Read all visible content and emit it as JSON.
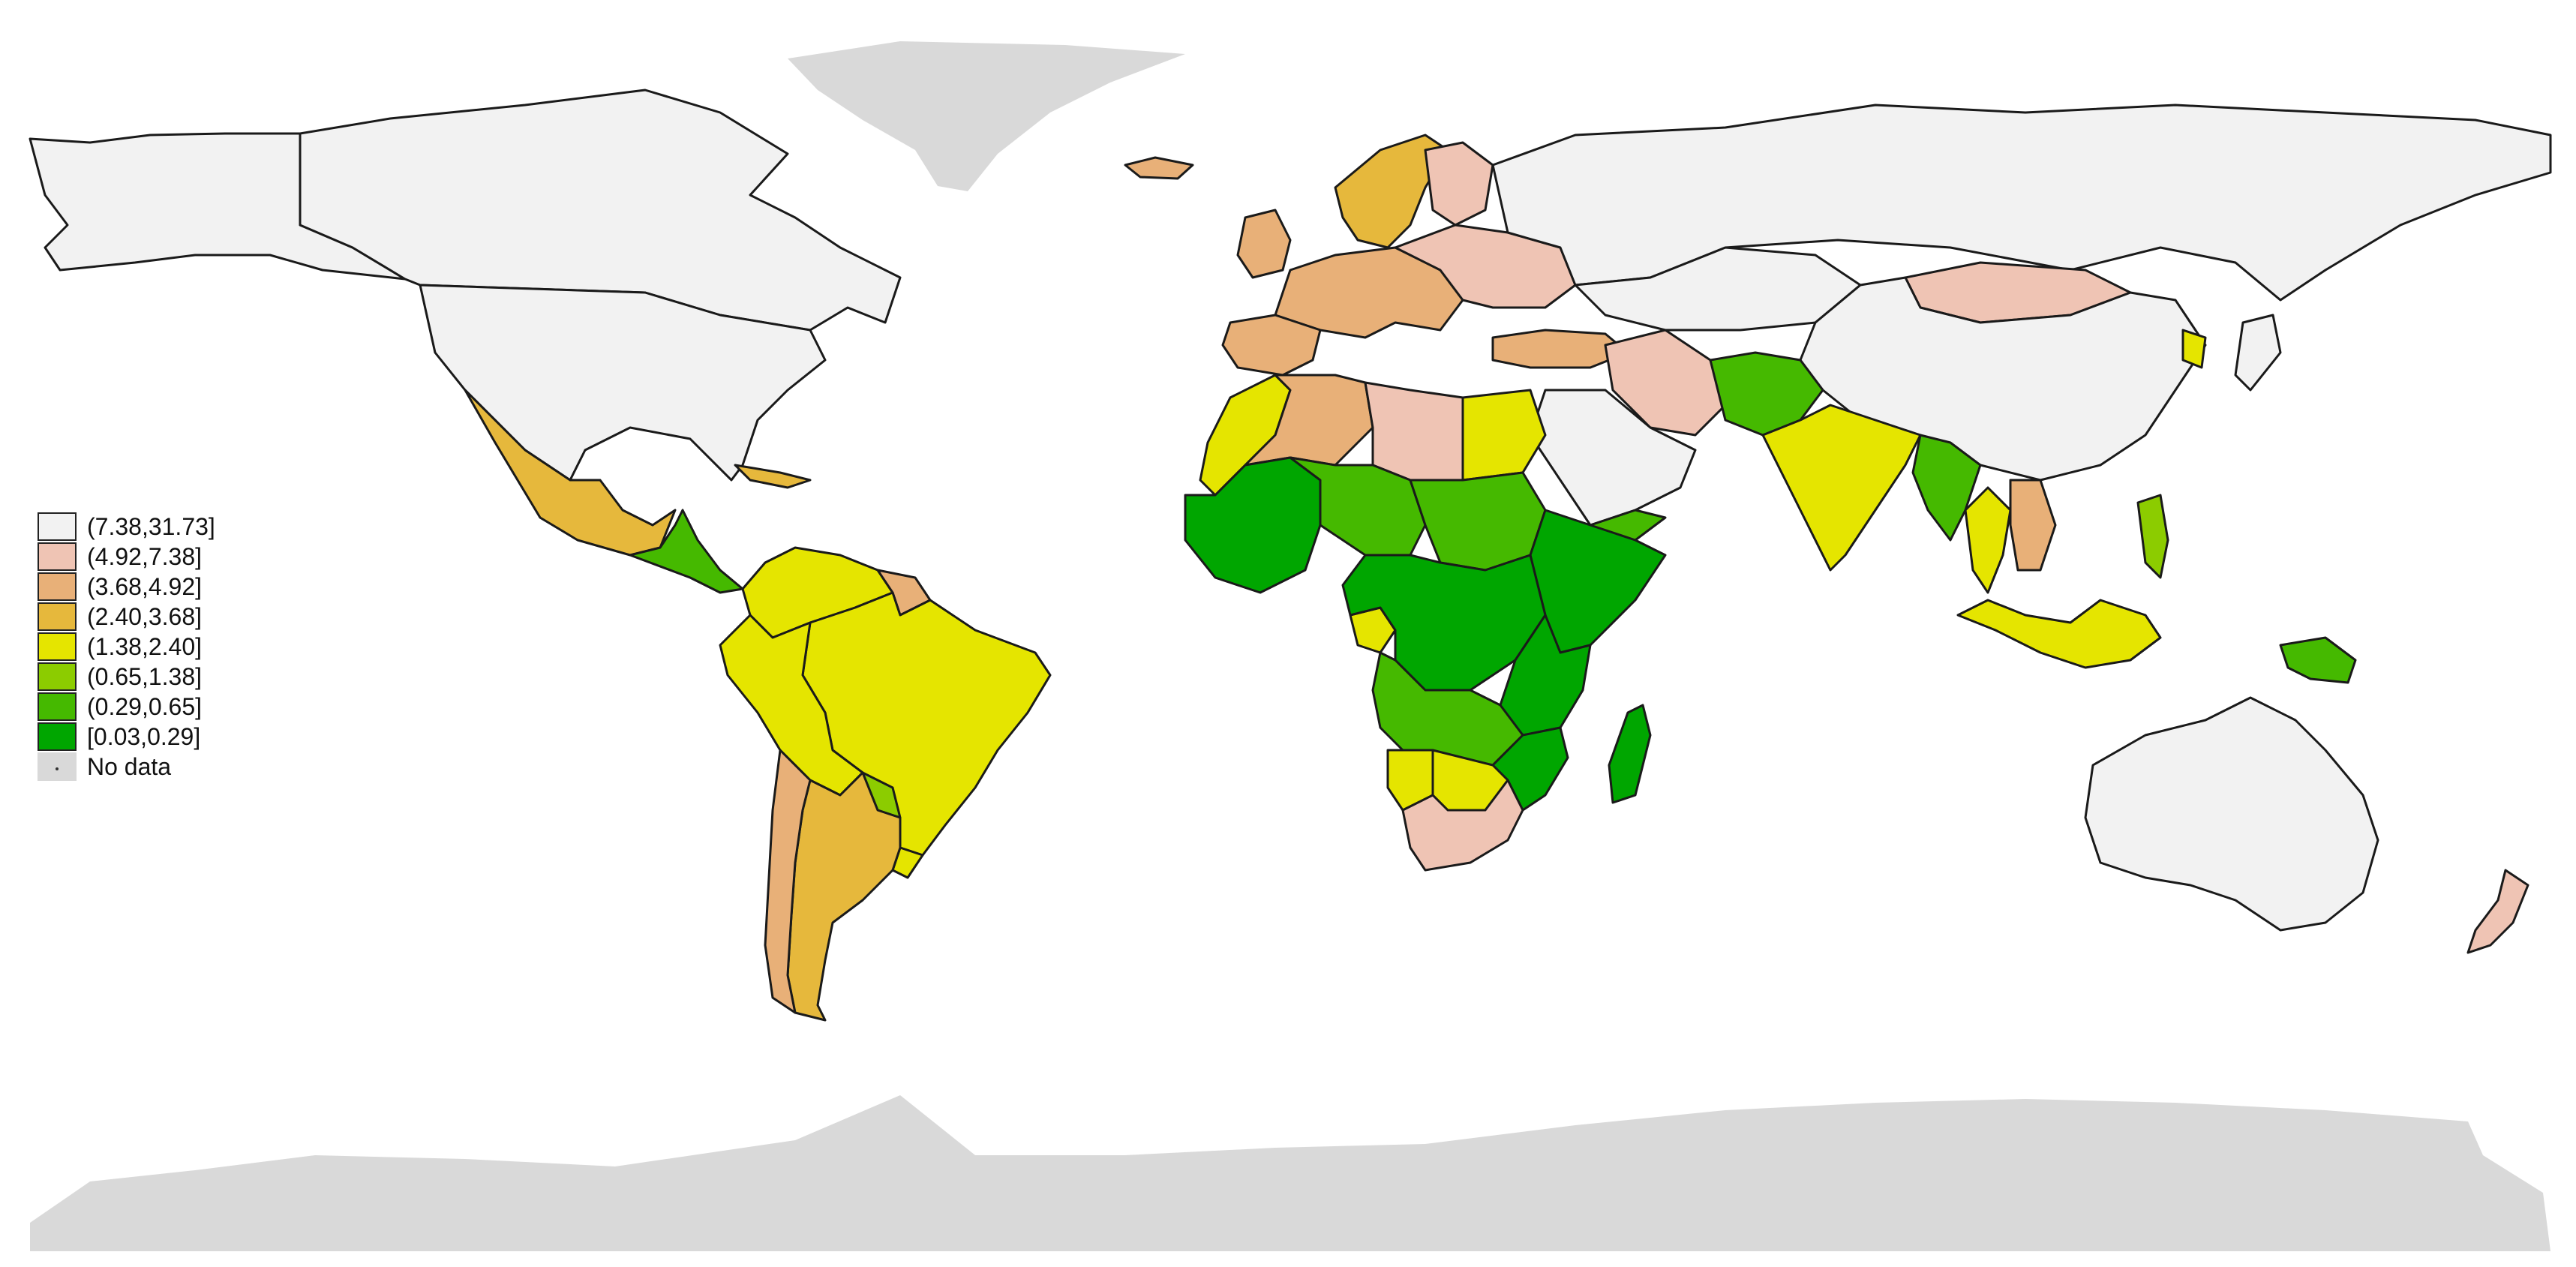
{
  "legend": {
    "classes": [
      {
        "label": "(7.38,31.73]",
        "color": "#f2f2f2"
      },
      {
        "label": "(4.92,7.38]",
        "color": "#efc4b4"
      },
      {
        "label": "(3.68,4.92]",
        "color": "#e8b078"
      },
      {
        "label": "(2.40,3.68]",
        "color": "#e6b83c"
      },
      {
        "label": "(1.38,2.40]",
        "color": "#e5e500"
      },
      {
        "label": "(0.65,1.38]",
        "color": "#8ccc00"
      },
      {
        "label": "(0.29,0.65]",
        "color": "#45b900"
      },
      {
        "label": "[0.03,0.29]",
        "color": "#00a600"
      }
    ],
    "no_data_label": "No data",
    "no_data_color": "#d9d9d9"
  },
  "regions": [
    {
      "name": "canada",
      "class": 0
    },
    {
      "name": "usa",
      "class": 0
    },
    {
      "name": "alaska",
      "class": 0
    },
    {
      "name": "mexico",
      "class": 3
    },
    {
      "name": "central-america",
      "class": 6
    },
    {
      "name": "caribbean",
      "class": 3
    },
    {
      "name": "colombia-venezuela",
      "class": 4
    },
    {
      "name": "guianas",
      "class": 2
    },
    {
      "name": "brazil",
      "class": 4
    },
    {
      "name": "peru-bolivia",
      "class": 4
    },
    {
      "name": "paraguay",
      "class": 5
    },
    {
      "name": "uruguay",
      "class": 4
    },
    {
      "name": "chile",
      "class": 2
    },
    {
      "name": "argentina",
      "class": 3
    },
    {
      "name": "iceland",
      "class": 2
    },
    {
      "name": "uk",
      "class": 2
    },
    {
      "name": "scandinavia",
      "class": 3
    },
    {
      "name": "finland",
      "class": 1
    },
    {
      "name": "western-europe",
      "class": 2
    },
    {
      "name": "eastern-europe",
      "class": 1
    },
    {
      "name": "iberia",
      "class": 2
    },
    {
      "name": "turkey",
      "class": 2
    },
    {
      "name": "russia",
      "class": 0
    },
    {
      "name": "kazakhstan",
      "class": 0
    },
    {
      "name": "mongolia",
      "class": 1
    },
    {
      "name": "china",
      "class": 0
    },
    {
      "name": "korea",
      "class": 4
    },
    {
      "name": "japan",
      "class": 0
    },
    {
      "name": "iran",
      "class": 1
    },
    {
      "name": "arabia",
      "class": 0
    },
    {
      "name": "yemen",
      "class": 6
    },
    {
      "name": "afghanistan-pakistan",
      "class": 6
    },
    {
      "name": "india",
      "class": 4
    },
    {
      "name": "bangladesh-myanmar",
      "class": 6
    },
    {
      "name": "thailand",
      "class": 4
    },
    {
      "name": "indochina",
      "class": 2
    },
    {
      "name": "malaysia-indonesia",
      "class": 4
    },
    {
      "name": "philippines",
      "class": 5
    },
    {
      "name": "png",
      "class": 6
    },
    {
      "name": "australia",
      "class": 0
    },
    {
      "name": "new-zealand",
      "class": 1
    },
    {
      "name": "morocco-mauritania",
      "class": 4
    },
    {
      "name": "algeria",
      "class": 2
    },
    {
      "name": "libya",
      "class": 1
    },
    {
      "name": "egypt",
      "class": 4
    },
    {
      "name": "west-africa",
      "class": 7
    },
    {
      "name": "sahel",
      "class": 6
    },
    {
      "name": "sudan",
      "class": 6
    },
    {
      "name": "horn-of-africa",
      "class": 7
    },
    {
      "name": "gabon",
      "class": 4
    },
    {
      "name": "central-africa",
      "class": 7
    },
    {
      "name": "east-africa",
      "class": 7
    },
    {
      "name": "angola-zambia",
      "class": 6
    },
    {
      "name": "mozambique",
      "class": 7
    },
    {
      "name": "namibia",
      "class": 4
    },
    {
      "name": "botswana",
      "class": 4
    },
    {
      "name": "south-africa",
      "class": 1
    },
    {
      "name": "madagascar",
      "class": 7
    }
  ]
}
